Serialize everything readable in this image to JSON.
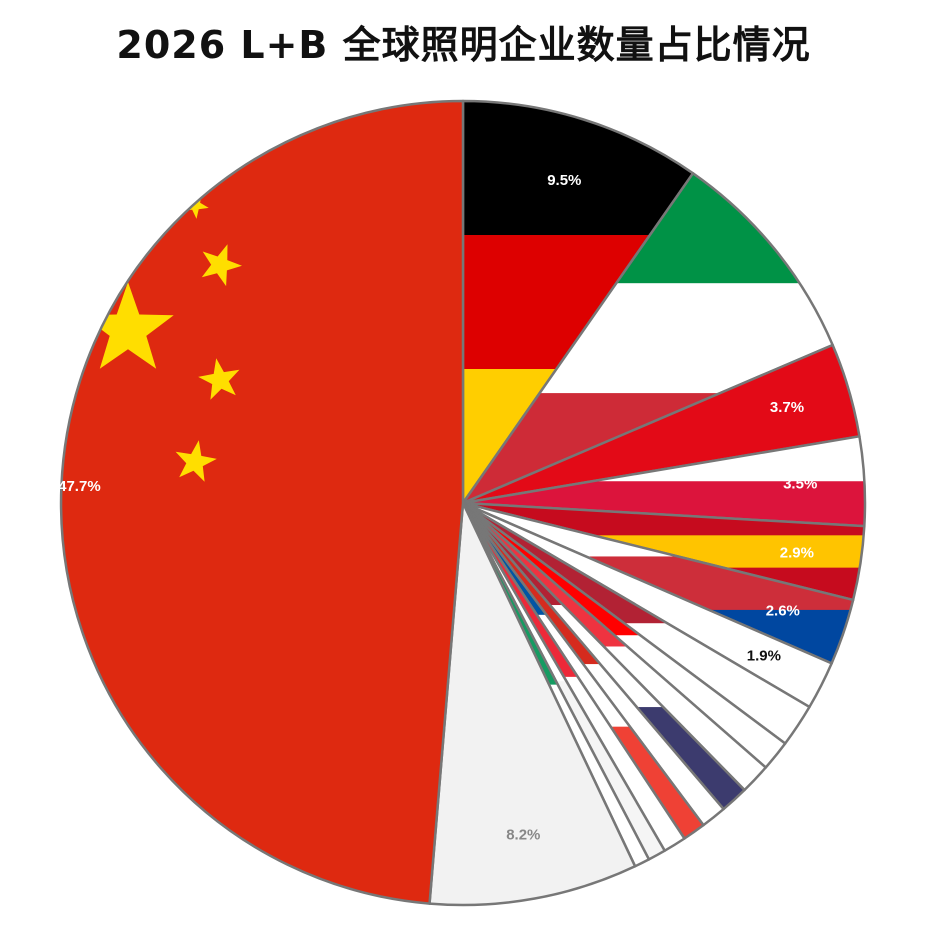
{
  "chart_data": {
    "type": "pie",
    "title": "2026 L+B 全球照明企业数量占比情况",
    "start_angle_deg": 0,
    "direction": "clockwise",
    "slices": [
      {
        "label": "9.5%",
        "value": 9.5,
        "colors": [
          "#000000",
          "#dd0000",
          "#ffce00"
        ],
        "label_color": "#ffffff"
      },
      {
        "label": "8.7%",
        "value": 8.7,
        "colors": [
          "#009246",
          "#ffffff",
          "#ce2b37"
        ],
        "label_color": "#ffffff"
      },
      {
        "label": "3.7%",
        "value": 3.7,
        "colors": [
          "#e30a17"
        ],
        "label_color": "#ffffff"
      },
      {
        "label": "3.5%",
        "value": 3.5,
        "colors": [
          "#ffffff",
          "#dc143c"
        ],
        "label_color": "#ffffff"
      },
      {
        "label": "2.9%",
        "value": 2.9,
        "colors": [
          "#c60b1e",
          "#ffc400",
          "#c60b1e"
        ],
        "label_color": "#ffffff"
      },
      {
        "label": "2.6%",
        "value": 2.6,
        "colors": [
          "#ffffff",
          "#cd2e3a",
          "#0047a0"
        ],
        "label_color": "#ffffff"
      },
      {
        "label": "1.9%",
        "value": 1.9,
        "colors": [
          "#ffffff"
        ],
        "label_color": "#111111"
      },
      {
        "label": "1.7%",
        "value": 1.7,
        "colors": [
          "#b22234",
          "#ffffff"
        ],
        "label_color": "#ffffff"
      },
      {
        "label": "",
        "value": 1.2,
        "colors": [
          "#ff0000",
          "#ffffff"
        ],
        "label_color": "#ffffff"
      },
      {
        "label": "",
        "value": 1.2,
        "colors": [
          "#ef3340",
          "#ffffff"
        ],
        "label_color": "#ffffff"
      },
      {
        "label": "",
        "value": 1.1,
        "colors": [
          "#b22234",
          "#ffffff",
          "#3c3b6e"
        ],
        "label_color": "#ffffff"
      },
      {
        "label": "",
        "value": 1.0,
        "colors": [
          "#d52b1e",
          "#ffffff"
        ],
        "label_color": "#ffffff"
      },
      {
        "label": "",
        "value": 0.9,
        "colors": [
          "#0055a4",
          "#ffffff",
          "#ef4135"
        ],
        "label_color": "#ffffff"
      },
      {
        "label": "",
        "value": 0.9,
        "colors": [
          "#ed2939",
          "#ffffff"
        ],
        "label_color": "#ffffff"
      },
      {
        "label": "",
        "value": 0.7,
        "colors": [
          "#ffffff",
          "#f5f5f5"
        ],
        "label_color": "#ffffff"
      },
      {
        "label": "",
        "value": 0.6,
        "colors": [
          "#169b62",
          "#ffffff"
        ],
        "label_color": "#ffffff"
      },
      {
        "label": "8.2%",
        "value": 8.2,
        "colors": [
          "#f2f2f2"
        ],
        "label_color": "#888888"
      },
      {
        "label": "47.7%",
        "value": 47.7,
        "colors": [
          "#de2910"
        ],
        "label_color": "#ffffff",
        "stars_color": "#ffde00"
      }
    ]
  }
}
